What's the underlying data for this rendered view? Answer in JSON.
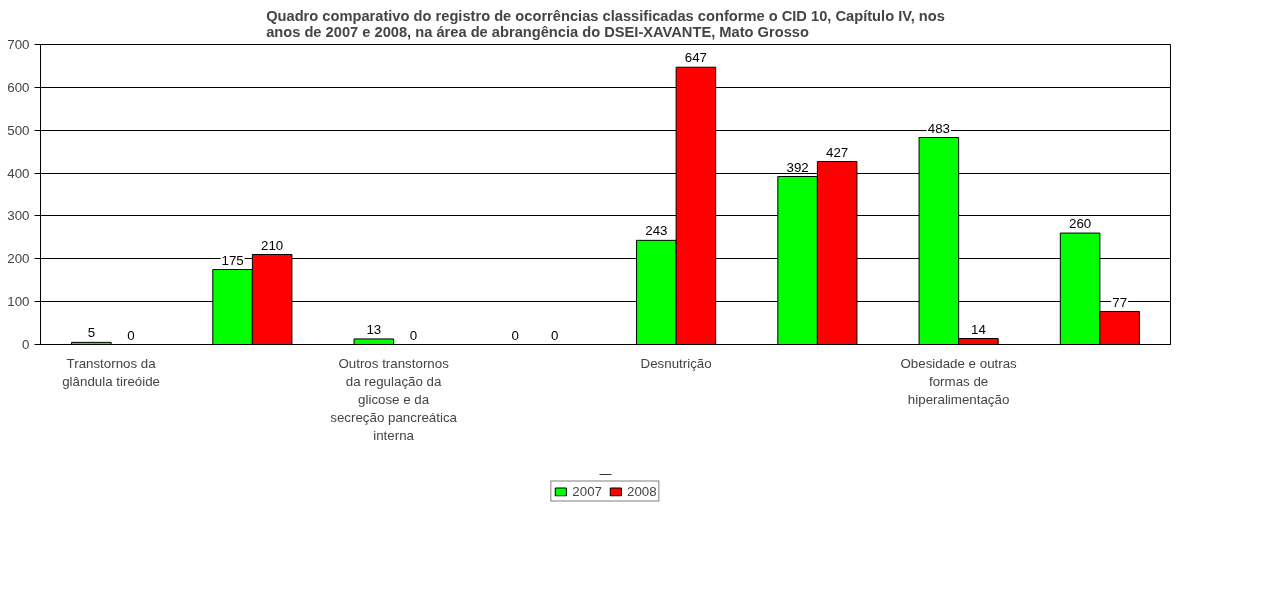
{
  "chart_data": {
    "type": "bar",
    "title": "Quadro comparativo do registro de ocorrências classificadas conforme o CID 10, Capítulo IV, nos anos de 2007 e 2008, na área de abrangência do DSEI-XAVANTE, Mato Grosso",
    "categories": [
      "Transtornos da glândula tireóide",
      null,
      "Outros transtornos da regulação da glicose e da secreção pancreática interna",
      null,
      "Desnutrição",
      null,
      "Obesidade e outras formas de hiperalimentação",
      null
    ],
    "series": [
      {
        "name": "2007",
        "color": "#00ff00",
        "values": [
          5,
          175,
          13,
          0,
          243,
          392,
          483,
          260
        ]
      },
      {
        "name": "2008",
        "color": "#ff0000",
        "values": [
          0,
          210,
          0,
          0,
          647,
          427,
          14,
          77
        ]
      }
    ],
    "ylim": [
      0,
      700
    ],
    "yticks": [
      0,
      100,
      200,
      300,
      400,
      500,
      600,
      700
    ],
    "grid": "y",
    "legend": "bottom",
    "data_labels": true
  }
}
